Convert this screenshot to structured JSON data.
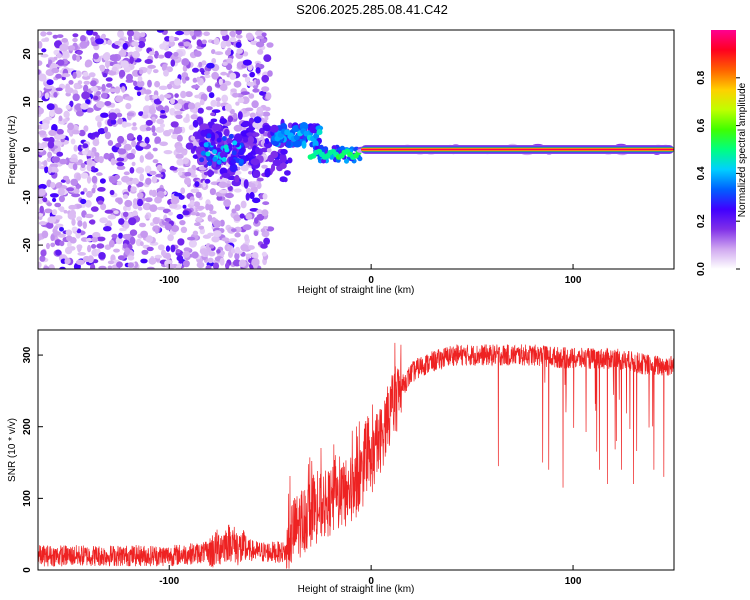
{
  "title": "S206.2025.285.08.41.C42",
  "chart_data": [
    {
      "type": "heatmap",
      "xlabel": "Height of straight line (km)",
      "ylabel": "Frequency (Hz)",
      "xlim": [
        -165,
        150
      ],
      "ylim": [
        -25,
        25
      ],
      "xticks": [
        -100,
        0,
        100
      ],
      "xtick_labels": [
        "-100",
        "0",
        "100"
      ],
      "yticks": [
        -20,
        -10,
        0,
        10,
        20
      ],
      "ytick_labels": [
        "-20",
        "-10",
        "0",
        "10",
        "20"
      ],
      "colorbar": {
        "label": "Normalized spectral amplitude",
        "range": [
          0,
          1
        ],
        "ticks": [
          0.0,
          0.2,
          0.4,
          0.6,
          0.8
        ],
        "tick_labels": [
          "0.0",
          "0.2",
          "0.4",
          "0.6",
          "0.8"
        ],
        "colormap": [
          "#ffffff",
          "#d0a8f0",
          "#8030e8",
          "#4000ff",
          "#0060ff",
          "#00d0ff",
          "#00ff80",
          "#40ff00",
          "#c0ff00",
          "#ffd000",
          "#ff6000",
          "#ff0020",
          "#ff0090"
        ]
      },
      "features": [
        {
          "name": "scattered noise",
          "x_range": [
            -165,
            -50
          ],
          "f_range": [
            -25,
            25
          ],
          "amplitude": 0.1
        },
        {
          "name": "transition cluster",
          "x_range": [
            -85,
            -40
          ],
          "f_range": [
            -8,
            8
          ],
          "amplitude": 0.15
        },
        {
          "name": "segment near +3 Hz",
          "x_range": [
            -48,
            -25
          ],
          "f_center": 3,
          "amplitude": 0.35
        },
        {
          "name": "segment near -1 Hz",
          "x_range": [
            -30,
            -5
          ],
          "f_center": -1,
          "amplitude": 0.45
        },
        {
          "name": "direct line at 0 Hz",
          "x_range": [
            -5,
            150
          ],
          "f_center": 0,
          "amplitude": 0.95
        }
      ]
    },
    {
      "type": "line",
      "xlabel": "Height of straight line (km)",
      "ylabel": "SNR (10 * v/v)",
      "xlim": [
        -165,
        150
      ],
      "ylim": [
        0,
        335
      ],
      "xticks": [
        -100,
        0,
        100
      ],
      "xtick_labels": [
        "-100",
        "0",
        "100"
      ],
      "yticks": [
        0,
        100,
        200,
        300
      ],
      "ytick_labels": [
        "0",
        "100",
        "200",
        "300"
      ],
      "color": "#ee2222",
      "x": [
        -165,
        -140,
        -120,
        -100,
        -80,
        -70,
        -65,
        -55,
        -42,
        -40,
        -35,
        -30,
        -20,
        -10,
        -5,
        0,
        5,
        10,
        15,
        20,
        25,
        30,
        40,
        50,
        60,
        80,
        100,
        120,
        140,
        150
      ],
      "values": [
        20,
        20,
        20,
        20,
        25,
        40,
        30,
        25,
        25,
        50,
        65,
        80,
        95,
        110,
        130,
        150,
        185,
        225,
        255,
        275,
        285,
        290,
        300,
        300,
        300,
        300,
        295,
        295,
        285,
        285
      ],
      "noise_amplitude": 15,
      "dips": [
        {
          "x": 63,
          "value": 145
        },
        {
          "x": 85,
          "value": 150
        },
        {
          "x": 88,
          "value": 140
        },
        {
          "x": 95,
          "value": 115
        },
        {
          "x": 113,
          "value": 140
        },
        {
          "x": 117,
          "value": 120
        },
        {
          "x": 124,
          "value": 140
        },
        {
          "x": 130,
          "value": 120
        },
        {
          "x": 140,
          "value": 140
        },
        {
          "x": 145,
          "value": 130
        }
      ]
    }
  ]
}
